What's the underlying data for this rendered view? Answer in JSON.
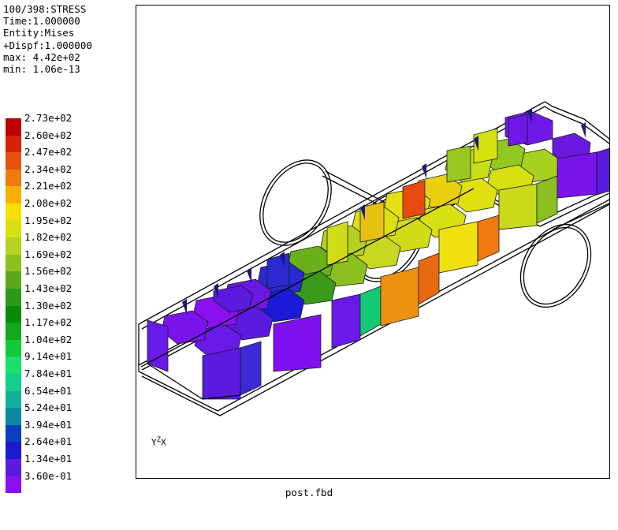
{
  "info": {
    "step": "100/398:STRESS",
    "time": "Time:1.000000",
    "entity": "Entity:Mises",
    "dispf": "+Dispf:1.000000",
    "max": "max: 4.42e+02",
    "min": "min: 1.06e-13"
  },
  "legend": {
    "entries": [
      {
        "label": "2.73e+02",
        "color": "#c00000"
      },
      {
        "label": "2.60e+02",
        "color": "#d8200a"
      },
      {
        "label": "2.47e+02",
        "color": "#e85010"
      },
      {
        "label": "2.34e+02",
        "color": "#f07a10"
      },
      {
        "label": "2.21e+02",
        "color": "#f8b000"
      },
      {
        "label": "2.08e+02",
        "color": "#f4e000"
      },
      {
        "label": "1.95e+02",
        "color": "#d8e010"
      },
      {
        "label": "1.82e+02",
        "color": "#b4d420"
      },
      {
        "label": "1.69e+02",
        "color": "#8cc020"
      },
      {
        "label": "1.56e+02",
        "color": "#5aa81a"
      },
      {
        "label": "1.43e+02",
        "color": "#2a9a18"
      },
      {
        "label": "1.30e+02",
        "color": "#0a8a0a"
      },
      {
        "label": "1.17e+02",
        "color": "#12a81a"
      },
      {
        "label": "1.04e+02",
        "color": "#14c83a"
      },
      {
        "label": "9.14e+01",
        "color": "#18e06a"
      },
      {
        "label": "7.84e+01",
        "color": "#12d08a"
      },
      {
        "label": "6.54e+01",
        "color": "#10b09a"
      },
      {
        "label": "5.24e+01",
        "color": "#0a8aa0"
      },
      {
        "label": "3.94e+01",
        "color": "#0a40c0"
      },
      {
        "label": "2.64e+01",
        "color": "#1a1ad0"
      },
      {
        "label": "1.34e+01",
        "color": "#5a1ae0"
      },
      {
        "label": "3.60e-01",
        "color": "#8a10f0"
      }
    ]
  },
  "caption": "post.fbd",
  "axes": "Y",
  "axes_z": "Z",
  "axes_x": "X"
}
